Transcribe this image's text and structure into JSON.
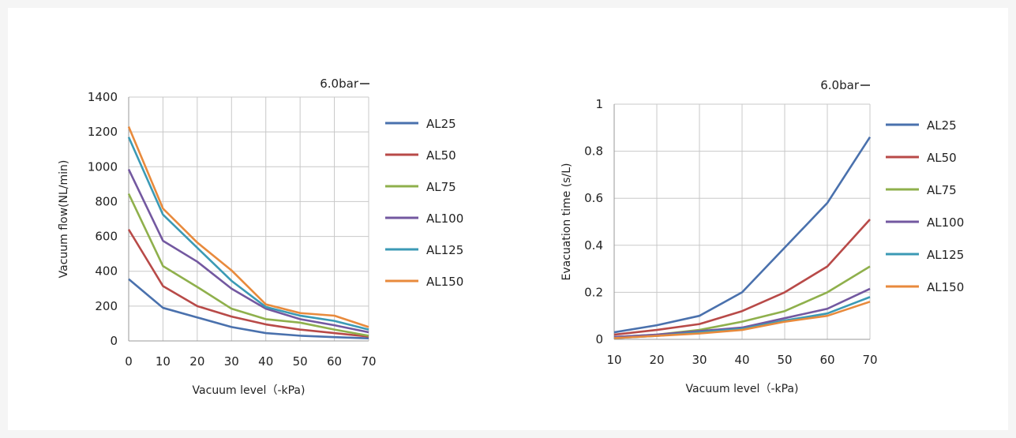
{
  "chart_data": [
    {
      "type": "line",
      "title": "",
      "annotation": "6.0bar",
      "xlabel": "Vacuum level（-kPa)",
      "ylabel": "Vacuum flow(NL/min)",
      "x": [
        0,
        10,
        20,
        30,
        40,
        50,
        60,
        70
      ],
      "xlim": [
        0,
        70
      ],
      "ylim": [
        0,
        1400
      ],
      "xticks": [
        "0",
        "10",
        "20",
        "30",
        "40",
        "50",
        "60",
        "70"
      ],
      "yticks": [
        "0",
        "200",
        "400",
        "600",
        "800",
        "1000",
        "1200",
        "1400"
      ],
      "grid": true,
      "legend": "right",
      "series": [
        {
          "name": "AL25",
          "color": "#4a71ad",
          "values": [
            355,
            190,
            135,
            80,
            45,
            30,
            22,
            15
          ]
        },
        {
          "name": "AL50",
          "color": "#b84a48",
          "values": [
            640,
            315,
            200,
            140,
            95,
            65,
            45,
            25
          ]
        },
        {
          "name": "AL75",
          "color": "#8fb04c",
          "values": [
            845,
            430,
            310,
            185,
            125,
            105,
            65,
            30
          ]
        },
        {
          "name": "AL100",
          "color": "#7358a0",
          "values": [
            985,
            575,
            455,
            300,
            185,
            125,
            90,
            50
          ]
        },
        {
          "name": "AL125",
          "color": "#3b9ab5",
          "values": [
            1170,
            725,
            535,
            345,
            195,
            145,
            115,
            65
          ]
        },
        {
          "name": "AL150",
          "color": "#e88a3c",
          "values": [
            1230,
            760,
            565,
            405,
            210,
            160,
            145,
            80
          ]
        }
      ]
    },
    {
      "type": "line",
      "title": "",
      "annotation": "6.0bar",
      "xlabel": "Vacuum level（-kPa)",
      "ylabel": "Evacuation time (s/L)",
      "x": [
        10,
        20,
        30,
        40,
        50,
        60,
        70
      ],
      "xlim": [
        10,
        70
      ],
      "ylim": [
        0,
        1
      ],
      "xticks": [
        "10",
        "20",
        "30",
        "40",
        "50",
        "60",
        "70"
      ],
      "yticks": [
        "0",
        "0.2",
        "0.4",
        "0.6",
        "0.8",
        "1"
      ],
      "grid": true,
      "legend": "right",
      "series": [
        {
          "name": "AL25",
          "color": "#4a71ad",
          "values": [
            0.03,
            0.06,
            0.1,
            0.2,
            0.39,
            0.58,
            0.86
          ]
        },
        {
          "name": "AL50",
          "color": "#b84a48",
          "values": [
            0.02,
            0.04,
            0.065,
            0.12,
            0.2,
            0.31,
            0.51
          ]
        },
        {
          "name": "AL75",
          "color": "#8fb04c",
          "values": [
            0.01,
            0.02,
            0.04,
            0.075,
            0.12,
            0.2,
            0.31
          ]
        },
        {
          "name": "AL100",
          "color": "#7358a0",
          "values": [
            0.01,
            0.02,
            0.035,
            0.05,
            0.09,
            0.13,
            0.215
          ]
        },
        {
          "name": "AL125",
          "color": "#3b9ab5",
          "values": [
            0.005,
            0.015,
            0.03,
            0.045,
            0.08,
            0.11,
            0.18
          ]
        },
        {
          "name": "AL150",
          "color": "#e88a3c",
          "values": [
            0.005,
            0.015,
            0.025,
            0.04,
            0.075,
            0.1,
            0.16
          ]
        }
      ]
    }
  ]
}
